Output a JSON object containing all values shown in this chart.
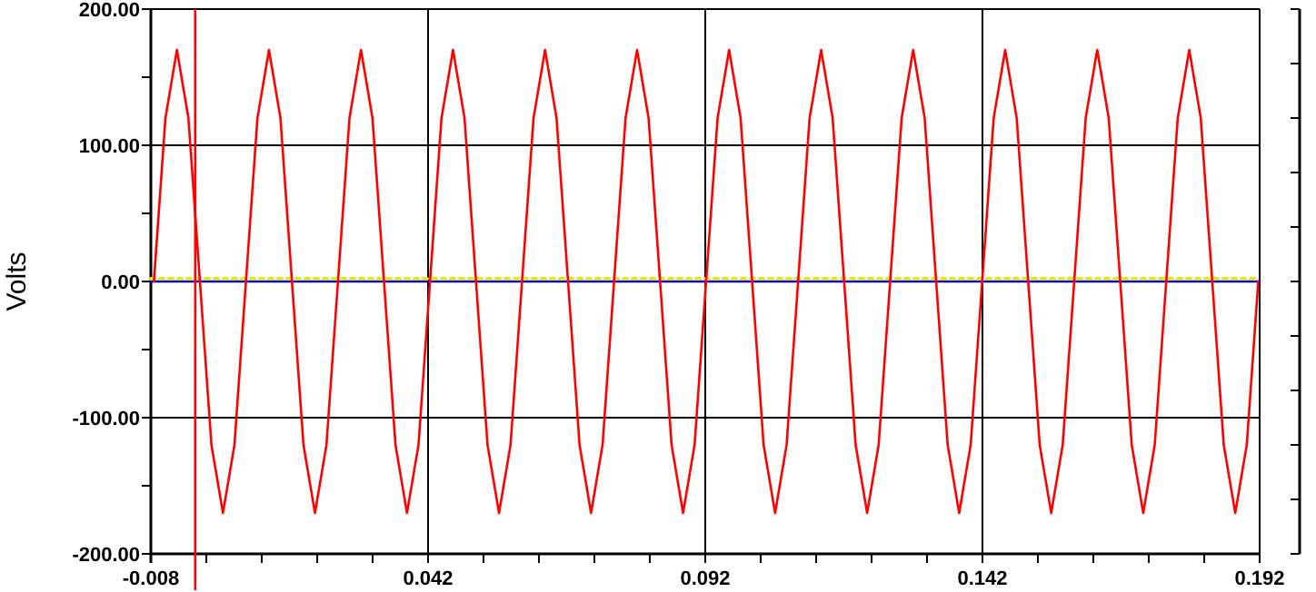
{
  "chart_data": {
    "type": "line",
    "ylabel": "Volts",
    "xlim": [
      -0.008,
      0.192
    ],
    "xticks": [
      -0.008,
      {
        "value": 0.002,
        "label": null
      },
      {
        "value": 0.012,
        "label": null
      },
      {
        "value": 0.022,
        "label": null
      },
      {
        "value": 0.032,
        "label": null
      },
      0.042,
      {
        "value": 0.052,
        "label": null
      },
      {
        "value": 0.062,
        "label": null
      },
      {
        "value": 0.072,
        "label": null
      },
      {
        "value": 0.082,
        "label": null
      },
      0.092,
      {
        "value": 0.102,
        "label": null
      },
      {
        "value": 0.112,
        "label": null
      },
      {
        "value": 0.122,
        "label": null
      },
      {
        "value": 0.132,
        "label": null
      },
      0.142,
      {
        "value": 0.152,
        "label": null
      },
      {
        "value": 0.162,
        "label": null
      },
      {
        "value": 0.172,
        "label": null
      },
      {
        "value": 0.182,
        "label": null
      },
      0.192
    ],
    "ylim": [
      -200,
      200
    ],
    "yticks": [
      {
        "value": -200,
        "label": "-200.00"
      },
      {
        "value": -150,
        "label": null
      },
      {
        "value": -100,
        "label": "-100.00"
      },
      {
        "value": -50,
        "label": null
      },
      {
        "value": 0,
        "label": "0.00"
      },
      {
        "value": 50,
        "label": null
      },
      {
        "value": 100,
        "label": "100.00"
      },
      {
        "value": 150,
        "label": null
      },
      {
        "value": 200,
        "label": "200.00"
      }
    ],
    "grid": true,
    "ref_lines": [
      {
        "axis": "x",
        "value": 0,
        "color": "#ff0000"
      }
    ],
    "series": [
      {
        "color": "#0000ff",
        "x": [
          -0.008,
          0.192
        ],
        "values": [
          0,
          0
        ]
      },
      {
        "color": "#e8e800",
        "line_style": "dotted",
        "x": [
          -0.008,
          0.192
        ],
        "values": [
          2,
          2
        ]
      },
      {
        "color": "#ff0000",
        "x": [
          -0.00745,
          -0.005375,
          -0.0033,
          -0.001225,
          0.00085,
          0.002925,
          0.005,
          0.007075,
          0.00915,
          0.011225,
          0.0133,
          0.015375,
          0.01745,
          0.019525,
          0.0216,
          0.023675,
          0.02575,
          0.027825,
          0.0299,
          0.031975,
          0.03405,
          0.036125,
          0.0382,
          0.040275,
          0.04235,
          0.044425,
          0.0465,
          0.048575,
          0.05065,
          0.052725,
          0.0548,
          0.056875,
          0.05895,
          0.061025,
          0.0631,
          0.065175,
          0.06725,
          0.069325,
          0.0714,
          0.073475,
          0.07555,
          0.077625,
          0.0797,
          0.081775,
          0.08385,
          0.085925,
          0.088,
          0.090075,
          0.09215,
          0.094225,
          0.0963,
          0.098375,
          0.10045,
          0.102525,
          0.1046,
          0.106675,
          0.10875,
          0.110825,
          0.1129,
          0.114975,
          0.11705,
          0.119125,
          0.1212,
          0.123275,
          0.12535,
          0.127425,
          0.1295,
          0.131575,
          0.13365,
          0.135725,
          0.1378,
          0.139875,
          0.14195,
          0.144025,
          0.1461,
          0.148175,
          0.15025,
          0.152325,
          0.1544,
          0.156475,
          0.15855,
          0.160625,
          0.1627,
          0.164775,
          0.16685,
          0.168925,
          0.171,
          0.173075,
          0.17515,
          0.177225,
          0.1793,
          0.181375,
          0.18345,
          0.185525,
          0.1876,
          0.189675,
          0.19175
        ],
        "values": [
          0,
          120,
          170,
          120,
          0,
          -120,
          -170,
          -120,
          0,
          120,
          170,
          120,
          0,
          -120,
          -170,
          -120,
          0,
          120,
          170,
          120,
          0,
          -120,
          -170,
          -120,
          0,
          120,
          170,
          120,
          0,
          -120,
          -170,
          -120,
          0,
          120,
          170,
          120,
          0,
          -120,
          -170,
          -120,
          0,
          120,
          170,
          120,
          0,
          -120,
          -170,
          -120,
          0,
          120,
          170,
          120,
          0,
          -120,
          -170,
          -120,
          0,
          120,
          170,
          120,
          0,
          -120,
          -170,
          -120,
          0,
          120,
          170,
          120,
          0,
          -120,
          -170,
          -120,
          0,
          120,
          170,
          120,
          0,
          -120,
          -170,
          -120,
          0,
          120,
          170,
          120,
          0,
          -120,
          -170,
          -120,
          0,
          120,
          170,
          120,
          0,
          -120,
          -170,
          -120,
          0
        ]
      }
    ]
  }
}
